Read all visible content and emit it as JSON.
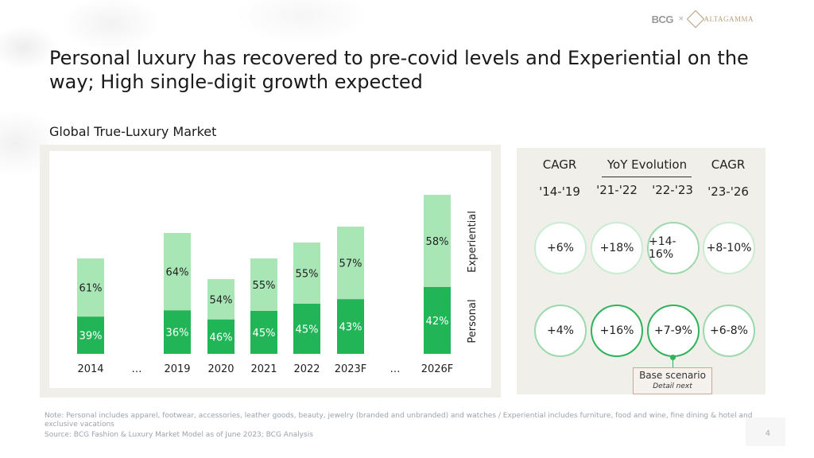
{
  "title": "Personal luxury has recovered to pre-covid levels and Experiential on the way; High single-digit growth expected",
  "subtitle": "Global True-Luxury Market",
  "logos": {
    "bcg": "BCG",
    "separator": "×",
    "altagamma": "ALTAGAMMA"
  },
  "colors": {
    "personal": "#22b557",
    "experiential": "#a9e6b6",
    "panel": "#f1efea",
    "accent": "#2fb35a"
  },
  "chart_data": {
    "type": "bar",
    "stacked": true,
    "categories": [
      "2014",
      "…",
      "2019",
      "2020",
      "2021",
      "2022",
      "2023F",
      "…",
      "2026F"
    ],
    "relative_totals": [
      0.6,
      null,
      0.76,
      0.47,
      0.6,
      0.7,
      0.8,
      null,
      1.0
    ],
    "series": [
      {
        "name": "Personal",
        "values": [
          "39%",
          null,
          "36%",
          "46%",
          "45%",
          "45%",
          "43%",
          null,
          "42%"
        ],
        "share": [
          0.39,
          null,
          0.36,
          0.46,
          0.45,
          0.45,
          0.43,
          null,
          0.42
        ]
      },
      {
        "name": "Experiential",
        "values": [
          "61%",
          null,
          "64%",
          "54%",
          "55%",
          "55%",
          "57%",
          null,
          "58%"
        ],
        "share": [
          0.61,
          null,
          0.64,
          0.54,
          0.55,
          0.55,
          0.57,
          null,
          0.58
        ]
      }
    ],
    "legend": [
      "Personal",
      "Experiential"
    ]
  },
  "growth_panel": {
    "headers": {
      "cagr_left": "CAGR",
      "yoy": "YoY Evolution",
      "cagr_right": "CAGR",
      "p1": "'14-'19",
      "p2": "'21-'22",
      "p3": "'22-'23",
      "p4": "'23-'26"
    },
    "experiential_row": [
      "+6%",
      "+18%",
      "+14-16%",
      "+8-10%"
    ],
    "personal_row": [
      "+4%",
      "+16%",
      "+7-9%",
      "+6-8%"
    ],
    "base_scenario": {
      "title": "Base scenario",
      "detail": "Detail next"
    }
  },
  "footer": {
    "note": "Note: Personal includes apparel, footwear, accessories, leather goods, beauty, jewelry (branded and unbranded) and watches / Experiential includes furniture, food and wine, fine dining & hotel and exclusive vacations",
    "source": "Source: BCG Fashion & Luxury Market Model as of June 2023; BCG Analysis",
    "page": "4"
  }
}
